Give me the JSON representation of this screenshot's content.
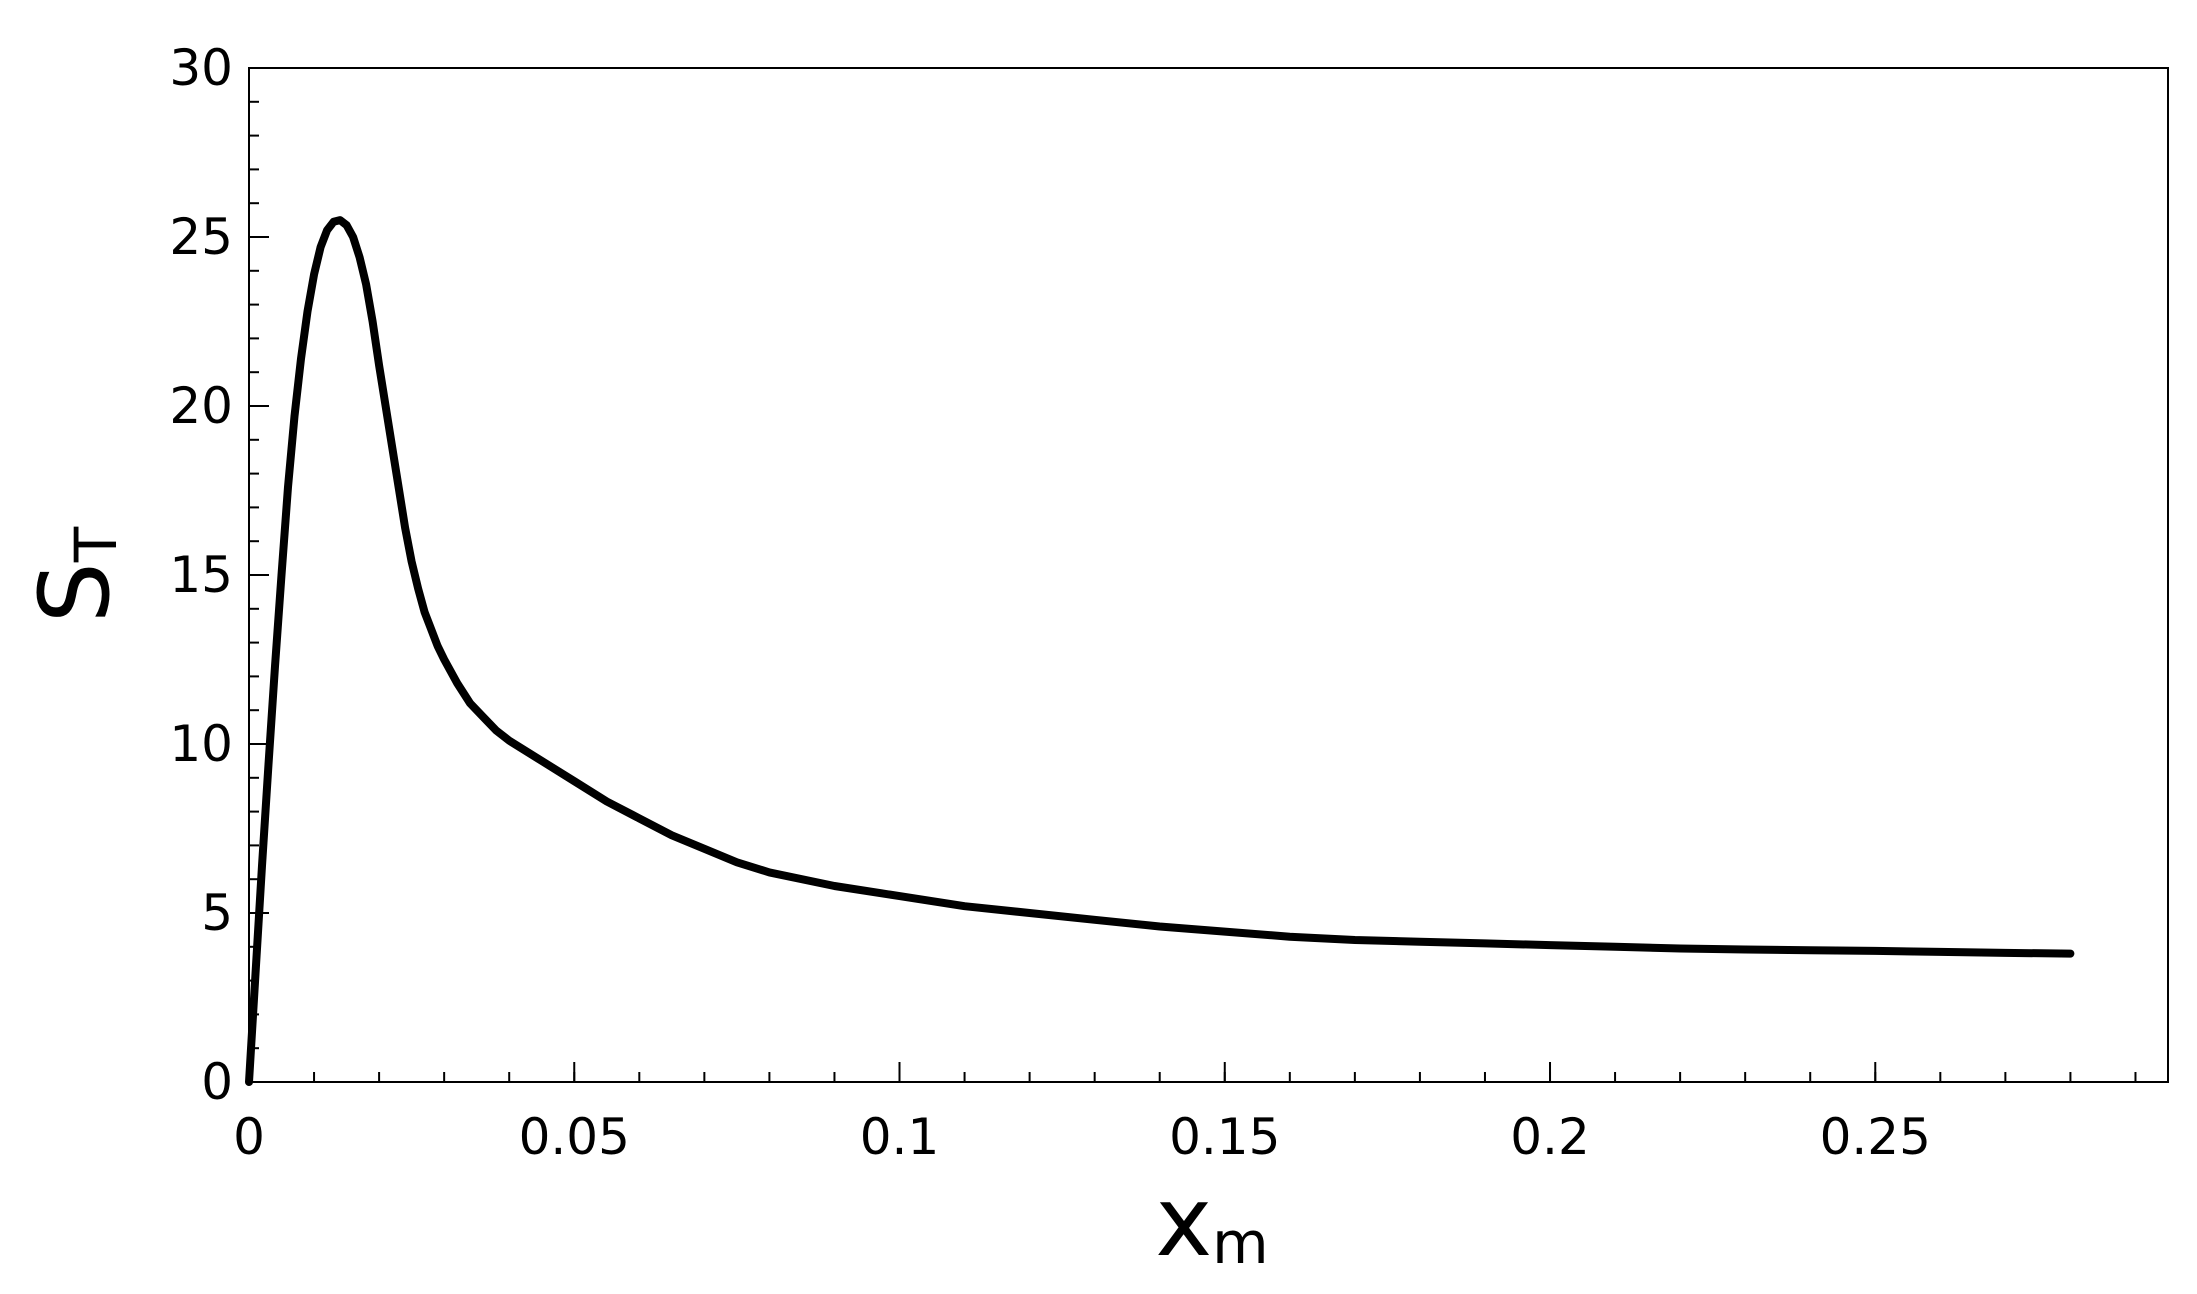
{
  "chart_data": {
    "type": "line",
    "xlabel": {
      "main": "x",
      "sub": "m"
    },
    "ylabel": {
      "main": "S",
      "sub": "T"
    },
    "xlim": [
      0,
      0.295
    ],
    "ylim": [
      0,
      30
    ],
    "x_ticks": [
      0,
      0.05,
      0.1,
      0.15,
      0.2,
      0.25
    ],
    "x_tick_labels": [
      "0",
      "0.05",
      "0.1",
      "0.15",
      "0.2",
      "0.25"
    ],
    "y_ticks": [
      0,
      5,
      10,
      15,
      20,
      25,
      30
    ],
    "y_tick_labels": [
      "0",
      "5",
      "10",
      "15",
      "20",
      "25",
      "30"
    ],
    "grid": false,
    "series": [
      {
        "color": "#000000",
        "x": [
          0,
          0.001,
          0.002,
          0.003,
          0.004,
          0.005,
          0.006,
          0.007,
          0.008,
          0.009,
          0.01,
          0.011,
          0.012,
          0.013,
          0.014,
          0.015,
          0.016,
          0.017,
          0.018,
          0.019,
          0.02,
          0.021,
          0.022,
          0.023,
          0.024,
          0.025,
          0.026,
          0.027,
          0.028,
          0.029,
          0.03,
          0.032,
          0.034,
          0.036,
          0.038,
          0.04,
          0.045,
          0.05,
          0.055,
          0.06,
          0.065,
          0.07,
          0.075,
          0.08,
          0.09,
          0.1,
          0.11,
          0.12,
          0.13,
          0.14,
          0.15,
          0.16,
          0.17,
          0.18,
          0.19,
          0.2,
          0.21,
          0.22,
          0.23,
          0.24,
          0.25,
          0.26,
          0.27,
          0.28
        ],
        "y": [
          0,
          3.2,
          6.4,
          9.4,
          12.3,
          15.0,
          17.6,
          19.7,
          21.4,
          22.8,
          23.9,
          24.7,
          25.2,
          25.45,
          25.5,
          25.35,
          25.0,
          24.4,
          23.6,
          22.5,
          21.2,
          20.0,
          18.8,
          17.6,
          16.4,
          15.4,
          14.6,
          13.9,
          13.4,
          12.9,
          12.5,
          11.8,
          11.2,
          10.8,
          10.4,
          10.1,
          9.5,
          8.9,
          8.3,
          7.8,
          7.3,
          6.9,
          6.5,
          6.2,
          5.8,
          5.5,
          5.2,
          5.0,
          4.8,
          4.6,
          4.45,
          4.3,
          4.2,
          4.15,
          4.1,
          4.05,
          4.0,
          3.95,
          3.92,
          3.9,
          3.88,
          3.85,
          3.82,
          3.8
        ]
      }
    ]
  }
}
